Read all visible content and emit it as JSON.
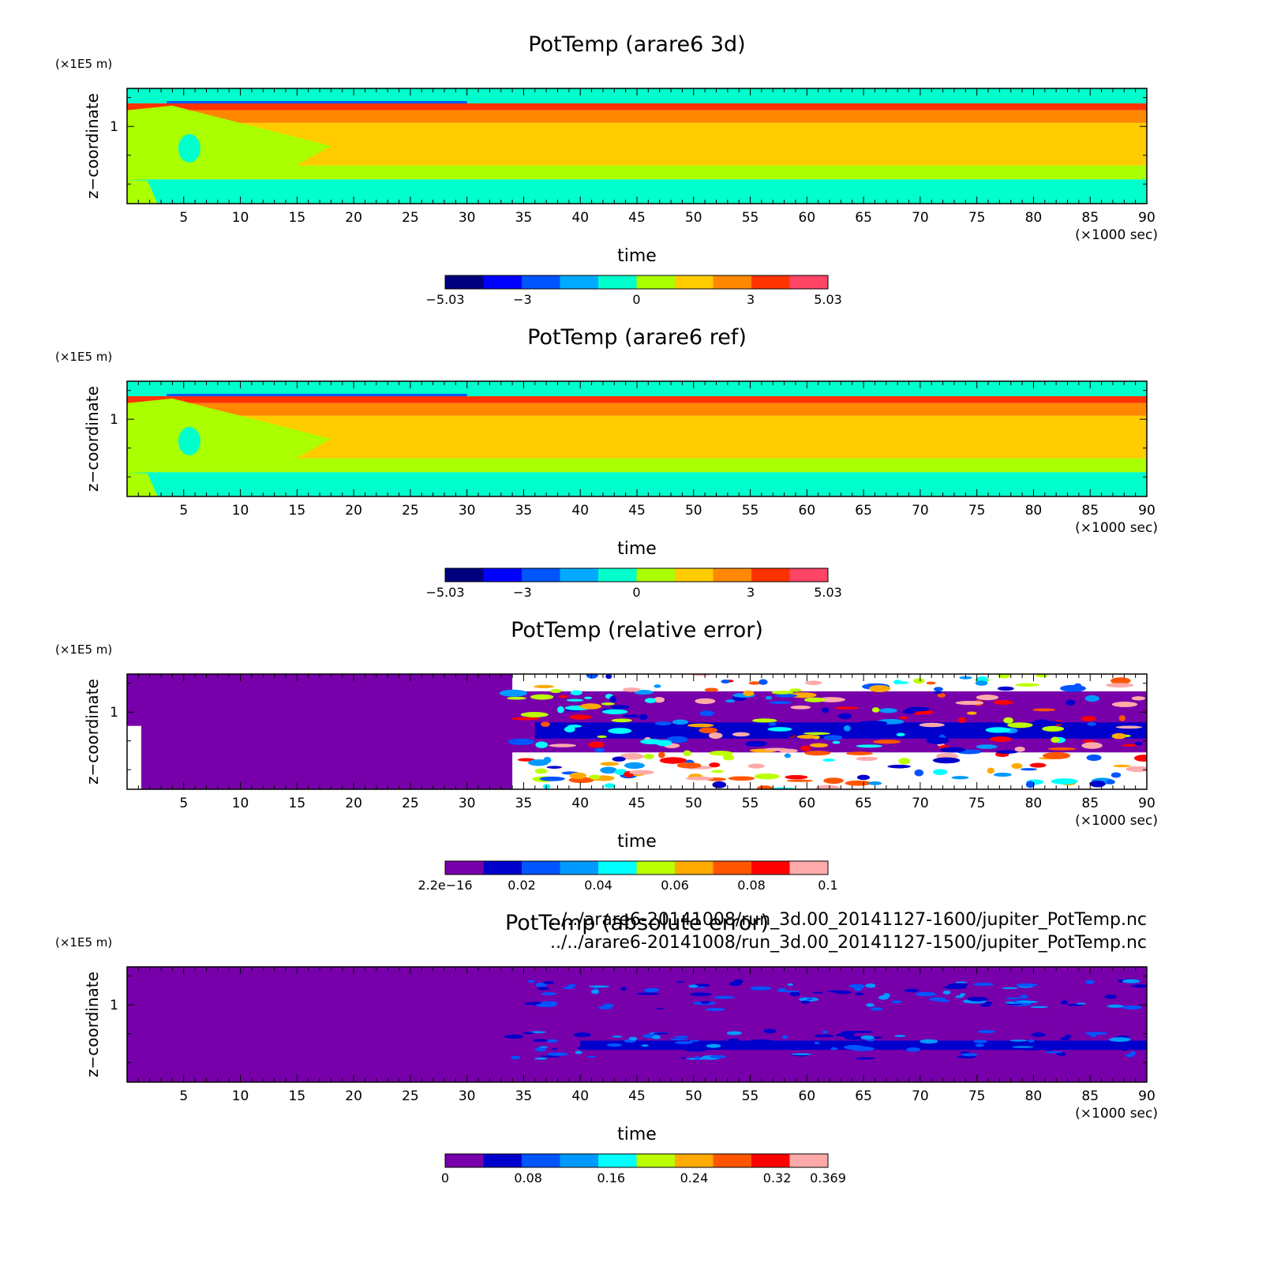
{
  "chart_data": [
    {
      "type": "heatmap",
      "title": "PotTemp (arare6 3d)",
      "xlabel": "time",
      "x_unit": "(×1000 sec)",
      "ylabel": "z−coordinate",
      "y_unit": "(×1E5 m)",
      "xlim": [
        0,
        90
      ],
      "x_ticks": [
        5,
        10,
        15,
        20,
        25,
        30,
        35,
        40,
        45,
        50,
        55,
        60,
        65,
        70,
        75,
        80,
        85,
        90
      ],
      "y_ticks": [
        1
      ],
      "colorbar": {
        "range": [
          -5.03,
          5.03
        ],
        "tick_labels": [
          "−5.03",
          "−3",
          "0",
          "3",
          "5.03"
        ],
        "tick_values": [
          -5.03,
          -3,
          0,
          3,
          5.03
        ],
        "colors": [
          "#00007f",
          "#0000ff",
          "#0055ff",
          "#00aaff",
          "#00ffcc",
          "#aaff00",
          "#ffcc00",
          "#ff8800",
          "#ff3300",
          "#ff4466"
        ]
      },
      "field": "potential temperature anomaly, layered in z"
    },
    {
      "type": "heatmap",
      "title": "PotTemp (arare6 ref)",
      "xlabel": "time",
      "x_unit": "(×1000 sec)",
      "ylabel": "z−coordinate",
      "y_unit": "(×1E5 m)",
      "xlim": [
        0,
        90
      ],
      "x_ticks": [
        5,
        10,
        15,
        20,
        25,
        30,
        35,
        40,
        45,
        50,
        55,
        60,
        65,
        70,
        75,
        80,
        85,
        90
      ],
      "y_ticks": [
        1
      ],
      "colorbar": {
        "range": [
          -5.03,
          5.03
        ],
        "tick_labels": [
          "−5.03",
          "−3",
          "0",
          "3",
          "5.03"
        ],
        "tick_values": [
          -5.03,
          -3,
          0,
          3,
          5.03
        ],
        "colors": [
          "#00007f",
          "#0000ff",
          "#0055ff",
          "#00aaff",
          "#00ffcc",
          "#aaff00",
          "#ffcc00",
          "#ff8800",
          "#ff3300",
          "#ff4466"
        ]
      },
      "field": "potential temperature anomaly, layered in z"
    },
    {
      "type": "heatmap",
      "title": "PotTemp (relative error)",
      "xlabel": "time",
      "x_unit": "(×1000 sec)",
      "ylabel": "z−coordinate",
      "y_unit": "(×1E5 m)",
      "xlim": [
        0,
        90
      ],
      "x_ticks": [
        5,
        10,
        15,
        20,
        25,
        30,
        35,
        40,
        45,
        50,
        55,
        60,
        65,
        70,
        75,
        80,
        85,
        90
      ],
      "y_ticks": [
        1
      ],
      "colorbar": {
        "range": [
          2.2e-16,
          0.1
        ],
        "tick_labels": [
          "2.2e−16",
          "0.02",
          "0.04",
          "0.06",
          "0.08",
          "0.1"
        ],
        "tick_values": [
          2.2e-16,
          0.02,
          0.04,
          0.06,
          0.08,
          0.1
        ],
        "colors": [
          "#7700aa",
          "#0000cc",
          "#0055ff",
          "#0099ff",
          "#00ffff",
          "#bbff00",
          "#ffaa00",
          "#ff5500",
          "#ff0000",
          "#ffaaaa"
        ]
      },
      "field": "relative error; near zero before t≈34, noisy afterwards"
    },
    {
      "type": "heatmap",
      "title": "PotTemp (absolute error)",
      "xlabel": "time",
      "x_unit": "(×1000 sec)",
      "ylabel": "z−coordinate",
      "y_unit": "(×1E5 m)",
      "xlim": [
        0,
        90
      ],
      "x_ticks": [
        5,
        10,
        15,
        20,
        25,
        30,
        35,
        40,
        45,
        50,
        55,
        60,
        65,
        70,
        75,
        80,
        85,
        90
      ],
      "y_ticks": [
        1
      ],
      "colorbar": {
        "range": [
          0,
          0.369
        ],
        "tick_labels": [
          "0",
          "0.08",
          "0.16",
          "0.24",
          "0.32",
          "0.369"
        ],
        "tick_values": [
          0,
          0.08,
          0.16,
          0.24,
          0.32,
          0.369
        ],
        "colors": [
          "#7700aa",
          "#0000cc",
          "#0055ff",
          "#0099ff",
          "#00ffff",
          "#bbff00",
          "#ffaa00",
          "#ff5500",
          "#ff0000",
          "#ffaaaa"
        ]
      },
      "field": "absolute error; zero before t≈34, small bands afterwards"
    }
  ],
  "file_paths": [
    "../../arare6-20141008/run_3d.00_20141127-1600/jupiter_PotTemp.nc",
    "../../arare6-20141008/run_3d.00_20141127-1500/jupiter_PotTemp.nc"
  ]
}
